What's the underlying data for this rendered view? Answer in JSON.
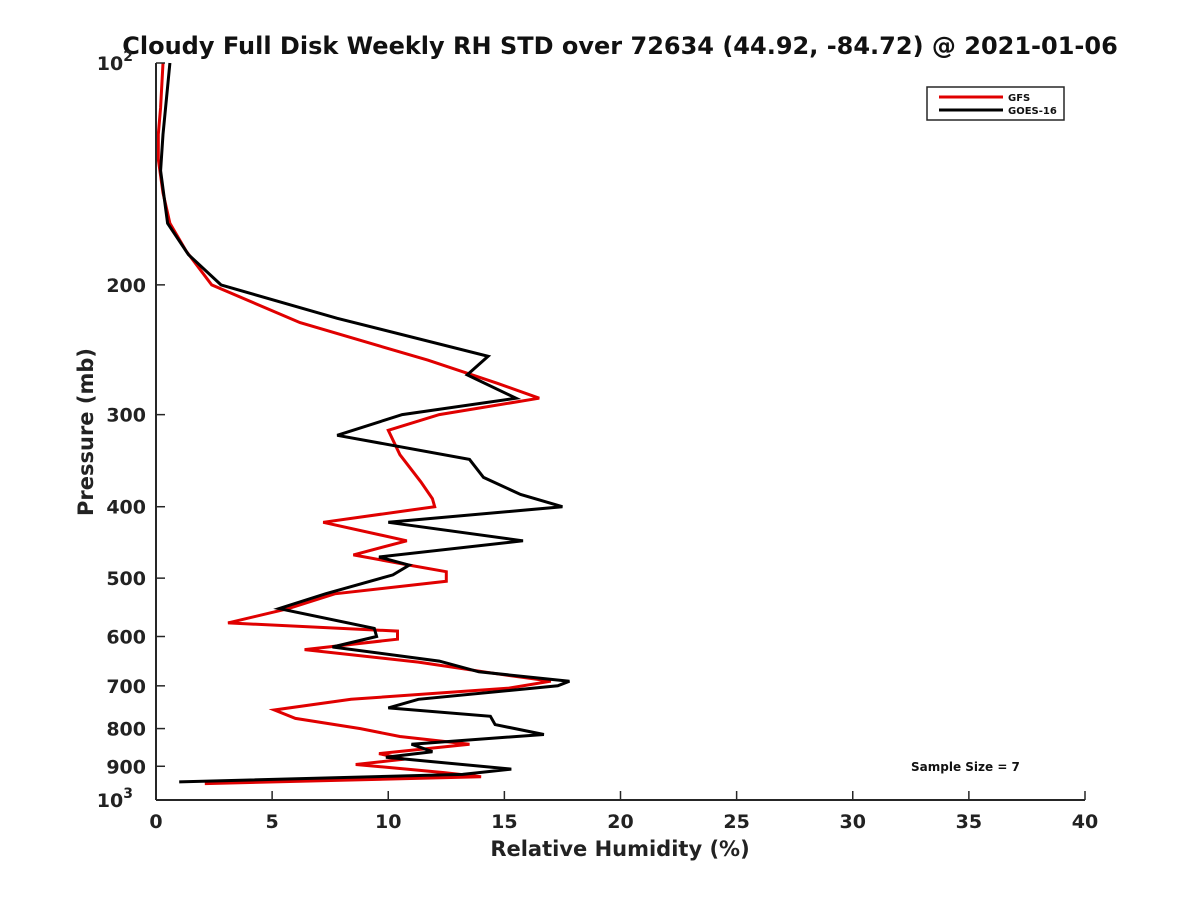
{
  "chart_data": {
    "type": "line",
    "title": "Cloudy Full Disk Weekly RH STD over 72634 (44.92, -84.72) @ 2021-01-06",
    "xlabel": "Relative Humidity (%)",
    "ylabel": "Pressure (mb)",
    "xlim": [
      0,
      40
    ],
    "ylim": [
      100,
      1000
    ],
    "y_scale": "log",
    "y_reversed": true,
    "x_ticks": [
      "0",
      "5",
      "10",
      "15",
      "20",
      "25",
      "30",
      "35",
      "40"
    ],
    "x_tick_values": [
      0,
      5,
      10,
      15,
      20,
      25,
      30,
      35,
      40
    ],
    "y_ticks": [
      {
        "value": 100,
        "base": "10",
        "exp": "2"
      },
      {
        "value": 200,
        "label": "200"
      },
      {
        "value": 300,
        "label": "300"
      },
      {
        "value": 400,
        "label": "400"
      },
      {
        "value": 500,
        "label": "500"
      },
      {
        "value": 600,
        "label": "600"
      },
      {
        "value": 700,
        "label": "700"
      },
      {
        "value": 800,
        "label": "800"
      },
      {
        "value": 900,
        "label": "900"
      },
      {
        "value": 1000,
        "base": "10",
        "exp": "3"
      }
    ],
    "grid": false,
    "legend_position": "top-right",
    "annotation": "Sample Size = 7",
    "series": [
      {
        "name": "GFS",
        "color": "#e00000",
        "points": [
          [
            0.3,
            100
          ],
          [
            0.2,
            115
          ],
          [
            0.1,
            125
          ],
          [
            0.1,
            135
          ],
          [
            0.3,
            150
          ],
          [
            0.6,
            165
          ],
          [
            1.3,
            180
          ],
          [
            2.4,
            200
          ],
          [
            6.2,
            225
          ],
          [
            11.7,
            253
          ],
          [
            14.7,
            272
          ],
          [
            16.5,
            285
          ],
          [
            12.2,
            300
          ],
          [
            10.0,
            315
          ],
          [
            10.5,
            340
          ],
          [
            11.4,
            370
          ],
          [
            11.9,
            390
          ],
          [
            12.0,
            400
          ],
          [
            7.2,
            420
          ],
          [
            10.8,
            445
          ],
          [
            8.5,
            465
          ],
          [
            10.9,
            480
          ],
          [
            12.5,
            490
          ],
          [
            12.5,
            505
          ],
          [
            7.7,
            525
          ],
          [
            5.7,
            550
          ],
          [
            3.1,
            575
          ],
          [
            10.4,
            590
          ],
          [
            10.4,
            605
          ],
          [
            6.4,
            625
          ],
          [
            11.3,
            650
          ],
          [
            14.8,
            675
          ],
          [
            17.0,
            690
          ],
          [
            15.2,
            705
          ],
          [
            8.4,
            730
          ],
          [
            5.1,
            755
          ],
          [
            6.0,
            775
          ],
          [
            8.8,
            800
          ],
          [
            10.5,
            820
          ],
          [
            13.5,
            840
          ],
          [
            9.6,
            865
          ],
          [
            10.7,
            880
          ],
          [
            8.6,
            895
          ],
          [
            10.8,
            908
          ],
          [
            12.4,
            918
          ],
          [
            14.0,
            930
          ],
          [
            2.1,
            950
          ]
        ]
      },
      {
        "name": "GOES-16",
        "color": "#000000",
        "points": [
          [
            0.6,
            100
          ],
          [
            0.3,
            125
          ],
          [
            0.2,
            140
          ],
          [
            0.5,
            165
          ],
          [
            1.4,
            182
          ],
          [
            2.8,
            200
          ],
          [
            7.8,
            222
          ],
          [
            14.3,
            250
          ],
          [
            13.4,
            265
          ],
          [
            15.5,
            285
          ],
          [
            10.6,
            300
          ],
          [
            7.8,
            320
          ],
          [
            13.5,
            345
          ],
          [
            14.1,
            365
          ],
          [
            15.7,
            385
          ],
          [
            17.5,
            400
          ],
          [
            10.0,
            420
          ],
          [
            15.8,
            445
          ],
          [
            9.6,
            468
          ],
          [
            10.9,
            480
          ],
          [
            10.2,
            495
          ],
          [
            7.3,
            525
          ],
          [
            5.3,
            550
          ],
          [
            9.4,
            585
          ],
          [
            9.5,
            600
          ],
          [
            7.6,
            620
          ],
          [
            12.2,
            648
          ],
          [
            13.9,
            670
          ],
          [
            17.8,
            690
          ],
          [
            17.3,
            700
          ],
          [
            11.3,
            730
          ],
          [
            10.0,
            750
          ],
          [
            14.4,
            770
          ],
          [
            14.6,
            790
          ],
          [
            16.7,
            815
          ],
          [
            11.0,
            840
          ],
          [
            11.9,
            860
          ],
          [
            9.9,
            875
          ],
          [
            15.3,
            908
          ],
          [
            13.2,
            923
          ],
          [
            1.0,
            945
          ]
        ]
      }
    ]
  }
}
